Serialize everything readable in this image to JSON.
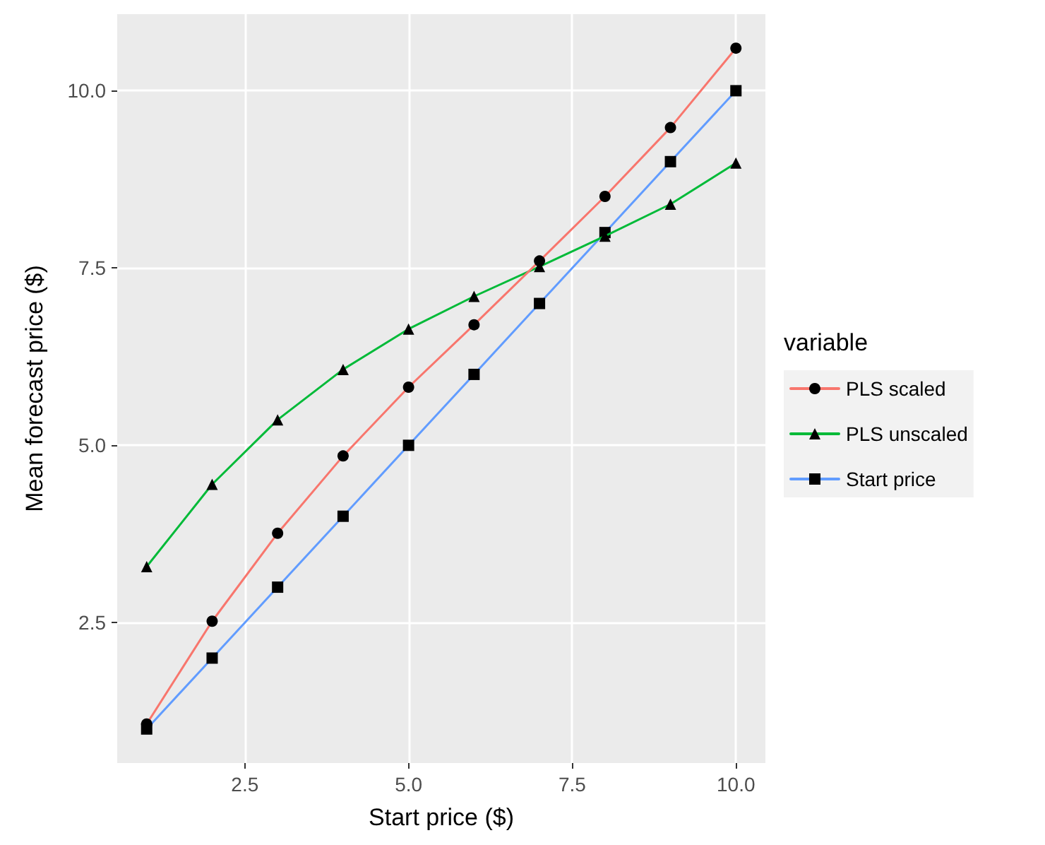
{
  "chart_data": {
    "type": "line",
    "xlabel": "Start price ($)",
    "ylabel": "Mean forecast price ($)",
    "legend_title": "variable",
    "legend": "right",
    "x": [
      1,
      2,
      3,
      4,
      5,
      6,
      7,
      8,
      9,
      10
    ],
    "xlim": [
      0.55,
      10.45
    ],
    "ylim": [
      0.52,
      11.08
    ],
    "xticks": [
      2.5,
      {
        "value": 5,
        "label": "5.0"
      },
      7.5,
      {
        "value": 10,
        "label": "10.0"
      }
    ],
    "yticks": [
      2.5,
      {
        "value": 5,
        "label": "5.0"
      },
      7.5,
      {
        "value": 10,
        "label": "10.0"
      }
    ],
    "grid": true,
    "series": [
      {
        "name": "PLS scaled",
        "color": "#f8766d",
        "marker": "circle",
        "values": [
          1.07,
          2.52,
          3.76,
          4.85,
          5.82,
          6.7,
          7.6,
          8.51,
          9.48,
          10.6
        ]
      },
      {
        "name": "PLS unscaled",
        "color": "#00ba38",
        "marker": "triangle",
        "values": [
          3.29,
          4.45,
          5.36,
          6.07,
          6.64,
          7.1,
          7.52,
          7.95,
          8.4,
          8.98
        ]
      },
      {
        "name": "Start price",
        "color": "#619cff",
        "marker": "square",
        "values": [
          1,
          2,
          3,
          4,
          5,
          6,
          7,
          8,
          9,
          10
        ]
      }
    ]
  }
}
